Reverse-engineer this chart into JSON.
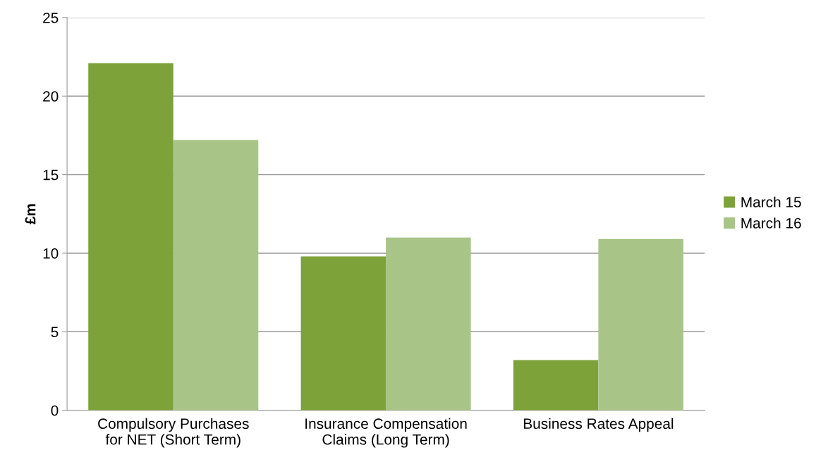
{
  "chart_data": {
    "type": "bar",
    "ylabel": "£m",
    "categories": [
      "Compulsory Purchases\nfor NET (Short Term)",
      "Insurance Compensation\nClaims (Long Term)",
      "Business Rates Appeal"
    ],
    "series": [
      {
        "name": "March 15",
        "color": "#7ea23a",
        "values": [
          22.1,
          9.8,
          3.2
        ]
      },
      {
        "name": "March 16",
        "color": "#a9c487",
        "values": [
          17.2,
          11.0,
          10.9
        ]
      }
    ],
    "ylim": [
      0,
      25
    ],
    "yticks": [
      0,
      5,
      10,
      15,
      20,
      25
    ],
    "grid": "y",
    "legend": "right"
  }
}
